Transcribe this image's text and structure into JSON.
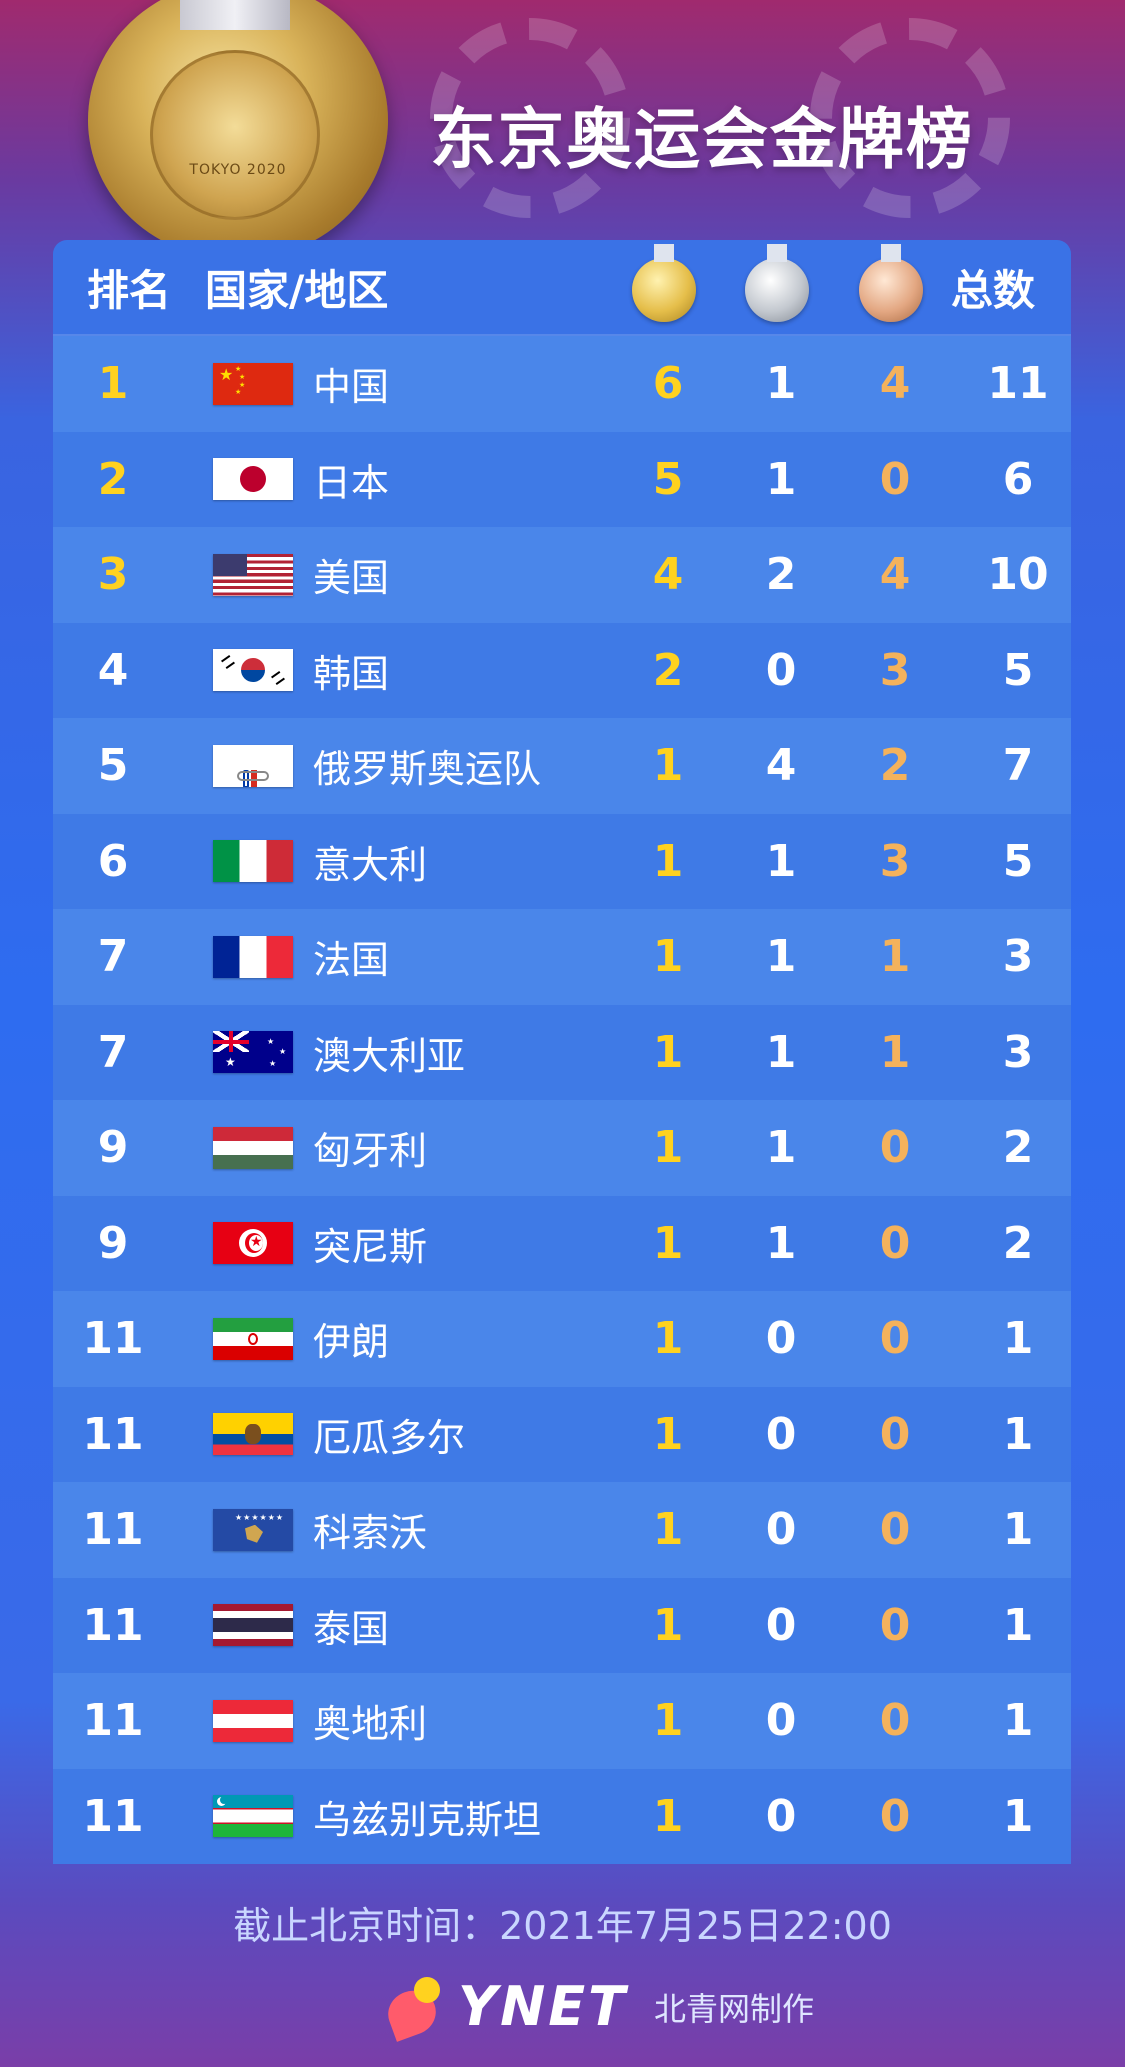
{
  "title": "东京奥运会金牌榜",
  "medal_hero_text": "TOKYO 2020",
  "header": {
    "rank": "排名",
    "country": "国家/地区",
    "gold_icon": "gold-medal-icon",
    "silver_icon": "silver-medal-icon",
    "bronze_icon": "bronze-medal-icon",
    "total": "总数"
  },
  "rows": [
    {
      "rank": "1",
      "flag": "china-flag-icon",
      "name": "中国",
      "gold": "6",
      "silver": "1",
      "bronze": "4",
      "total": "11"
    },
    {
      "rank": "2",
      "flag": "japan-flag-icon",
      "name": "日本",
      "gold": "5",
      "silver": "1",
      "bronze": "0",
      "total": "6"
    },
    {
      "rank": "3",
      "flag": "usa-flag-icon",
      "name": "美国",
      "gold": "4",
      "silver": "2",
      "bronze": "4",
      "total": "10"
    },
    {
      "rank": "4",
      "flag": "korea-flag-icon",
      "name": "韩国",
      "gold": "2",
      "silver": "0",
      "bronze": "3",
      "total": "5"
    },
    {
      "rank": "5",
      "flag": "roc-flag-icon",
      "name": "俄罗斯奥运队",
      "gold": "1",
      "silver": "4",
      "bronze": "2",
      "total": "7"
    },
    {
      "rank": "6",
      "flag": "italy-flag-icon",
      "name": "意大利",
      "gold": "1",
      "silver": "1",
      "bronze": "3",
      "total": "5"
    },
    {
      "rank": "7",
      "flag": "france-flag-icon",
      "name": "法国",
      "gold": "1",
      "silver": "1",
      "bronze": "1",
      "total": "3"
    },
    {
      "rank": "7",
      "flag": "australia-flag-icon",
      "name": "澳大利亚",
      "gold": "1",
      "silver": "1",
      "bronze": "1",
      "total": "3"
    },
    {
      "rank": "9",
      "flag": "hungary-flag-icon",
      "name": "匈牙利",
      "gold": "1",
      "silver": "1",
      "bronze": "0",
      "total": "2"
    },
    {
      "rank": "9",
      "flag": "tunisia-flag-icon",
      "name": "突尼斯",
      "gold": "1",
      "silver": "1",
      "bronze": "0",
      "total": "2"
    },
    {
      "rank": "11",
      "flag": "iran-flag-icon",
      "name": "伊朗",
      "gold": "1",
      "silver": "0",
      "bronze": "0",
      "total": "1"
    },
    {
      "rank": "11",
      "flag": "ecuador-flag-icon",
      "name": "厄瓜多尔",
      "gold": "1",
      "silver": "0",
      "bronze": "0",
      "total": "1"
    },
    {
      "rank": "11",
      "flag": "kosovo-flag-icon",
      "name": "科索沃",
      "gold": "1",
      "silver": "0",
      "bronze": "0",
      "total": "1"
    },
    {
      "rank": "11",
      "flag": "thailand-flag-icon",
      "name": "泰国",
      "gold": "1",
      "silver": "0",
      "bronze": "0",
      "total": "1"
    },
    {
      "rank": "11",
      "flag": "austria-flag-icon",
      "name": "奥地利",
      "gold": "1",
      "silver": "0",
      "bronze": "0",
      "total": "1"
    },
    {
      "rank": "11",
      "flag": "uzbekistan-flag-icon",
      "name": "乌兹别克斯坦",
      "gold": "1",
      "silver": "0",
      "bronze": "0",
      "total": "1"
    }
  ],
  "footer": {
    "time": "截止北京时间：2021年7月25日22:00",
    "brand": "YNET",
    "brand_sub": "北青网制作"
  },
  "colors": {
    "gold_text": "#ffd21f",
    "bronze_text": "#f4b25c",
    "row_odd": "#4a86ea",
    "row_even": "#3f7ae6"
  }
}
